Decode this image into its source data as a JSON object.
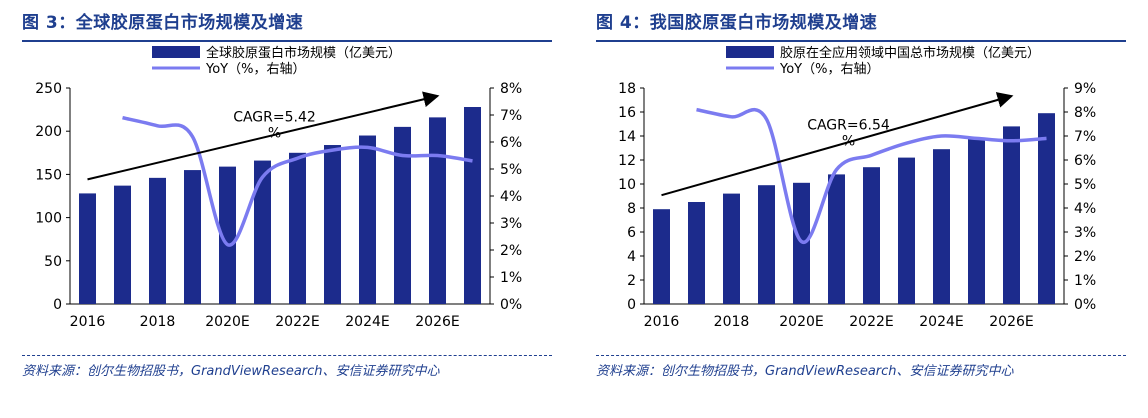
{
  "figures": [
    {
      "title": "图 3：全球胶原蛋白市场规模及增速",
      "source": "资料来源：创尔生物招股书，GrandViewResearch、安信证券研究中心"
    },
    {
      "title": "图 4：我国胶原蛋白市场规模及增速",
      "source": "资料来源：创尔生物招股书，GrandViewResearch、安信证券研究中心"
    }
  ],
  "colors": {
    "bar": "#1c2b8c",
    "line": "#7b7bf0",
    "text": "#000000",
    "title": "#1f3f8f"
  },
  "chart_data": [
    {
      "type": "bar",
      "categories": [
        "2016",
        "2017",
        "2018",
        "2019",
        "2020E",
        "2021E",
        "2022E",
        "2023E",
        "2024E",
        "2025E",
        "2026E",
        "2027E"
      ],
      "x_tick_labels": [
        "2016",
        "",
        "2018",
        "",
        "2020E",
        "",
        "2022E",
        "",
        "2024E",
        "",
        "2026E",
        ""
      ],
      "series": [
        {
          "name": "全球胶原蛋白市场规模（亿美元）",
          "axis": "left",
          "values": [
            128,
            137,
            146,
            155,
            159,
            166,
            175,
            184,
            195,
            205,
            216,
            228
          ]
        },
        {
          "name": "YoY（%，右轴）",
          "axis": "right",
          "type": "line",
          "values": [
            null,
            6.9,
            6.6,
            6.2,
            2.2,
            4.7,
            5.4,
            5.7,
            5.8,
            5.5,
            5.5,
            5.3
          ]
        }
      ],
      "y_left": {
        "min": 0,
        "max": 250,
        "ticks": [
          0,
          50,
          100,
          150,
          200,
          250
        ],
        "labels": [
          "0",
          "50",
          "100",
          "150",
          "200",
          "250"
        ]
      },
      "y_right": {
        "min": 0,
        "max": 8,
        "ticks": [
          0,
          1,
          2,
          3,
          4,
          5,
          6,
          7,
          8
        ],
        "labels": [
          "0%",
          "1%",
          "2%",
          "3%",
          "4%",
          "5%",
          "6%",
          "7%",
          "8%"
        ]
      },
      "annotation": {
        "text_line1": "CAGR=5.42",
        "text_line2": "%"
      },
      "legend": "top-left"
    },
    {
      "type": "bar",
      "categories": [
        "2016",
        "2017",
        "2018",
        "2019",
        "2020E",
        "2021E",
        "2022E",
        "2023E",
        "2024E",
        "2025E",
        "2026E",
        "2027E"
      ],
      "x_tick_labels": [
        "2016",
        "",
        "2018",
        "",
        "2020E",
        "",
        "2022E",
        "",
        "2024E",
        "",
        "2026E",
        ""
      ],
      "series": [
        {
          "name": "胶原在全应用领域中国总市场规模（亿美元）",
          "axis": "left",
          "values": [
            7.9,
            8.5,
            9.2,
            9.9,
            10.1,
            10.8,
            11.4,
            12.2,
            12.9,
            13.8,
            14.8,
            15.9
          ]
        },
        {
          "name": "YoY（%，右轴）",
          "axis": "right",
          "type": "line",
          "values": [
            null,
            8.1,
            7.8,
            7.7,
            2.6,
            5.6,
            6.2,
            6.7,
            7.0,
            6.9,
            6.8,
            6.9
          ]
        }
      ],
      "y_left": {
        "min": 0,
        "max": 18,
        "ticks": [
          0,
          2,
          4,
          6,
          8,
          10,
          12,
          14,
          16,
          18
        ],
        "labels": [
          "0",
          "2",
          "4",
          "6",
          "8",
          "10",
          "12",
          "14",
          "16",
          "18"
        ]
      },
      "y_right": {
        "min": 0,
        "max": 9,
        "ticks": [
          0,
          1,
          2,
          3,
          4,
          5,
          6,
          7,
          8,
          9
        ],
        "labels": [
          "0%",
          "1%",
          "2%",
          "3%",
          "4%",
          "5%",
          "6%",
          "7%",
          "8%",
          "9%"
        ]
      },
      "annotation": {
        "text_line1": "CAGR=6.54",
        "text_line2": "%"
      },
      "legend": "top-left"
    }
  ]
}
